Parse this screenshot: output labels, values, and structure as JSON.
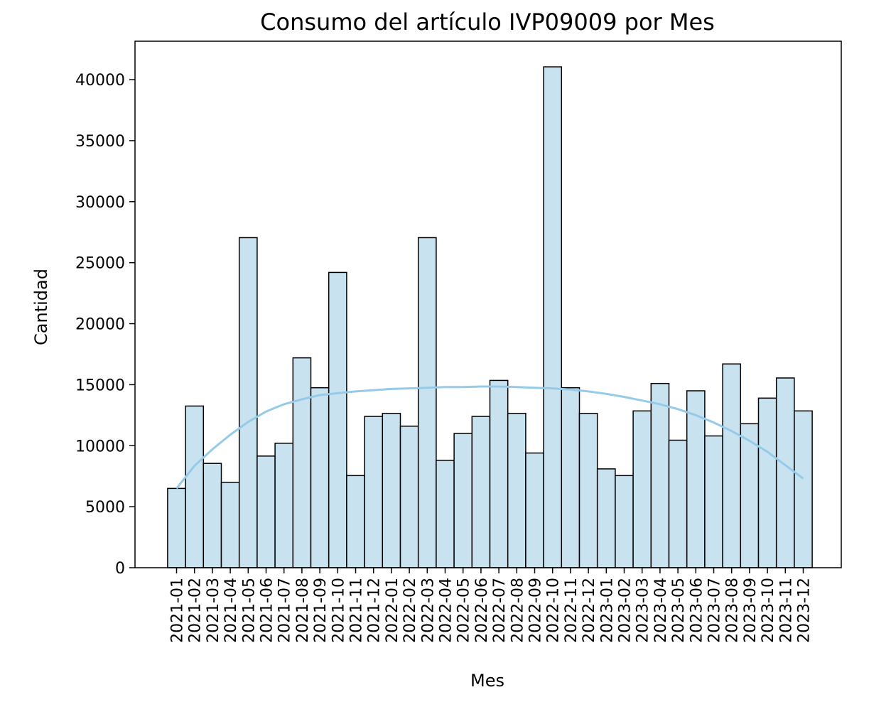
{
  "chart_data": {
    "type": "bar",
    "title": "Consumo del artículo IVP09009 por Mes",
    "xlabel": "Mes",
    "ylabel": "Cantidad",
    "categories": [
      "2021-01",
      "2021-02",
      "2021-03",
      "2021-04",
      "2021-05",
      "2021-06",
      "2021-07",
      "2021-08",
      "2021-09",
      "2021-10",
      "2021-11",
      "2021-12",
      "2022-01",
      "2022-02",
      "2022-03",
      "2022-04",
      "2022-05",
      "2022-06",
      "2022-07",
      "2022-08",
      "2022-09",
      "2022-10",
      "2022-11",
      "2022-12",
      "2023-01",
      "2023-02",
      "2023-03",
      "2023-04",
      "2023-05",
      "2023-06",
      "2023-07",
      "2023-08",
      "2023-09",
      "2023-10",
      "2023-11",
      "2023-12"
    ],
    "values": [
      6500,
      13250,
      8550,
      7000,
      27050,
      9150,
      10200,
      17200,
      14750,
      24200,
      7550,
      12400,
      12650,
      11600,
      27050,
      8800,
      11000,
      12400,
      15350,
      12650,
      9400,
      41050,
      14750,
      12650,
      8100,
      7550,
      12850,
      15100,
      10450,
      14500,
      10800,
      16700,
      11800,
      13900,
      15550,
      12850
    ],
    "trend": [
      6500,
      8350,
      9700,
      10900,
      11950,
      12800,
      13400,
      13800,
      14150,
      14300,
      14450,
      14550,
      14650,
      14700,
      14750,
      14800,
      14800,
      14850,
      14850,
      14800,
      14750,
      14700,
      14600,
      14450,
      14250,
      14000,
      13700,
      13400,
      13000,
      12500,
      11900,
      11200,
      10400,
      9500,
      8400,
      7300
    ],
    "yticks": [
      0,
      5000,
      10000,
      15000,
      20000,
      25000,
      30000,
      35000,
      40000
    ],
    "ylim": [
      0,
      43150
    ],
    "grid": false,
    "colors": {
      "bar_fill": "#c8e2ef",
      "bar_edge": "#000000",
      "trend_line": "#95cbe8"
    }
  }
}
